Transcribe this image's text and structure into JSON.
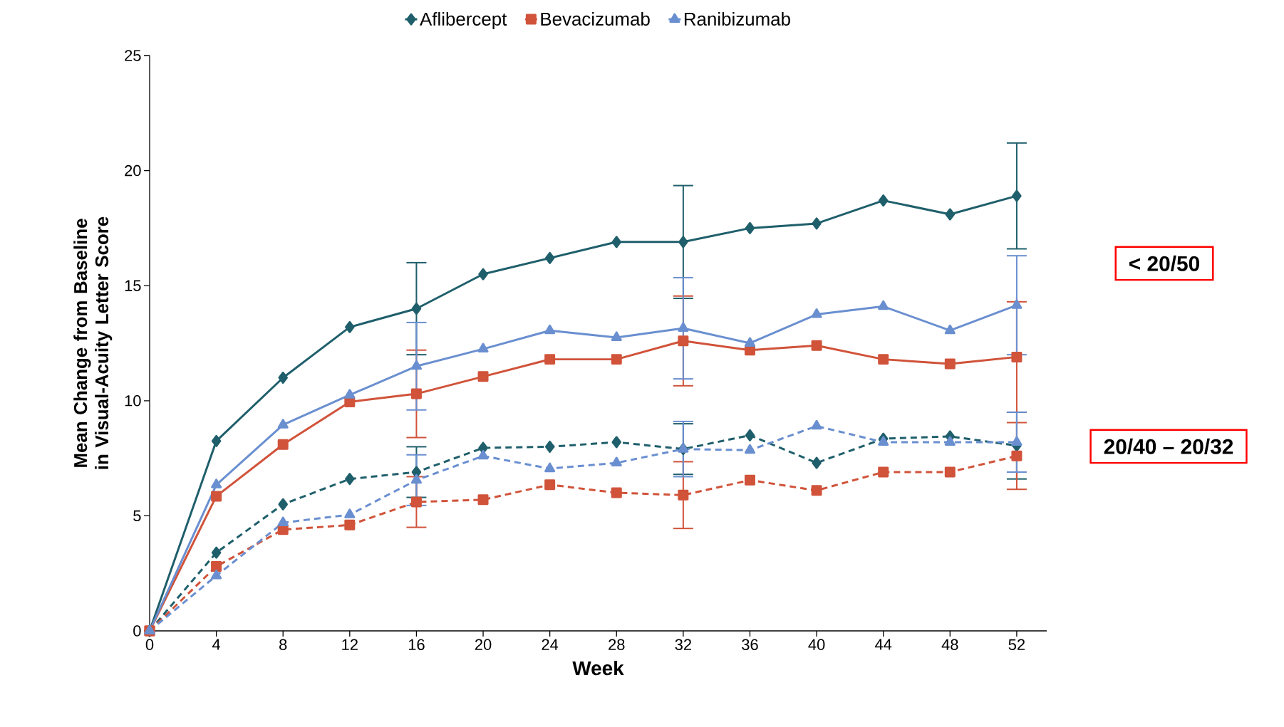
{
  "chart_data": {
    "type": "line",
    "xlabel": "Week",
    "ylabel": "Mean Change from Baseline in Visual-Acuity Letter Score",
    "x": [
      0,
      4,
      8,
      12,
      16,
      20,
      24,
      28,
      32,
      36,
      40,
      44,
      48,
      52
    ],
    "xlim": [
      0,
      53.8
    ],
    "ylim": [
      0,
      25
    ],
    "xticks": [
      0,
      4,
      8,
      12,
      16,
      20,
      24,
      28,
      32,
      36,
      40,
      44,
      48,
      52
    ],
    "yticks": [
      0,
      5,
      10,
      15,
      20,
      25
    ],
    "grid": false,
    "legend": "top",
    "annotations": [
      "< 20/50",
      "20/40 – 20/32"
    ],
    "series": [
      {
        "name": "Aflibercept",
        "color": "#1f5f6b",
        "marker": "diamond",
        "line_style": "solid",
        "values": [
          0,
          8.25,
          11.0,
          13.2,
          14.0,
          15.5,
          16.2,
          16.9,
          16.9,
          17.5,
          17.7,
          18.7,
          18.1,
          18.9
        ],
        "errors": [
          null,
          null,
          null,
          null,
          2.0,
          null,
          null,
          null,
          2.45,
          null,
          null,
          null,
          null,
          2.3
        ]
      },
      {
        "name": "Bevacizumab",
        "color": "#d0533a",
        "marker": "square",
        "line_style": "solid",
        "values": [
          0,
          5.85,
          8.1,
          9.95,
          10.3,
          11.05,
          11.8,
          11.8,
          12.6,
          12.2,
          12.4,
          11.8,
          11.6,
          11.9
        ],
        "errors": [
          null,
          null,
          null,
          null,
          1.9,
          null,
          null,
          null,
          1.95,
          null,
          null,
          null,
          null,
          2.4
        ]
      },
      {
        "name": "Ranibizumab",
        "color": "#6a8fd0",
        "marker": "triangle",
        "line_style": "solid",
        "values": [
          0,
          6.35,
          8.95,
          10.25,
          11.5,
          12.25,
          13.05,
          12.75,
          13.15,
          12.5,
          13.75,
          14.1,
          13.05,
          14.15
        ],
        "errors": [
          null,
          null,
          null,
          null,
          1.9,
          null,
          null,
          null,
          2.2,
          null,
          null,
          null,
          null,
          2.15
        ]
      },
      {
        "color": "#1f5f6b",
        "marker": "diamond",
        "line_style": "dashed",
        "values": [
          0,
          3.4,
          5.5,
          6.6,
          6.9,
          7.95,
          8.0,
          8.2,
          7.9,
          8.5,
          7.3,
          8.35,
          8.45,
          8.05
        ],
        "errors": [
          null,
          null,
          null,
          null,
          1.1,
          null,
          null,
          null,
          1.1,
          null,
          null,
          null,
          null,
          1.45
        ]
      },
      {
        "color": "#d0533a",
        "marker": "square",
        "line_style": "dashed",
        "values": [
          0,
          2.8,
          4.4,
          4.6,
          5.6,
          5.7,
          6.35,
          6.0,
          5.9,
          6.55,
          6.1,
          6.9,
          6.9,
          7.6
        ],
        "errors": [
          null,
          null,
          null,
          null,
          1.1,
          null,
          null,
          null,
          1.45,
          null,
          null,
          null,
          null,
          1.45
        ]
      },
      {
        "color": "#6a8fd0",
        "marker": "triangle",
        "line_style": "dashed",
        "values": [
          0,
          2.4,
          4.7,
          5.05,
          6.55,
          7.6,
          7.05,
          7.3,
          7.9,
          7.85,
          8.9,
          8.2,
          8.2,
          8.2
        ],
        "errors": [
          null,
          null,
          null,
          null,
          1.1,
          null,
          null,
          null,
          1.2,
          null,
          null,
          null,
          null,
          1.3
        ]
      }
    ]
  }
}
